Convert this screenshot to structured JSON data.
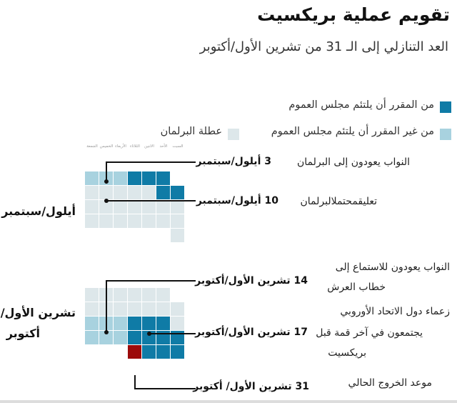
{
  "title": "تقويم عملية بريكسيت",
  "subtitle": "العد التنازلي إلى الـ 31 من تشرين الأول/أكتوبر",
  "legend": {
    "sitting": "من المقرر أن يلتئم مجلس العموم",
    "not_sitting": "من غير المقرر أن يلتئم مجلس العموم",
    "recess": "عطلة البرلمان"
  },
  "colors": {
    "sitting": "#0f7ba6",
    "not_sitting": "#a8d2df",
    "recess": "#dde7ea",
    "deadline": "#9c0b0b"
  },
  "weekdays": [
    "السبت",
    "الأحد",
    "الاثنين",
    "الثلاثاء",
    "الأربعاء",
    "الخميس",
    "الجمعة"
  ],
  "months": {
    "september": "أيلول/سبتمبر",
    "october_line1": "تشرين الأول/",
    "october_line2": "أكتوبر"
  },
  "annotations": {
    "sep3_date": "3 أيلول/سبتمبر",
    "sep3_event": "النواب يعودون إلى البرلمان",
    "sep10_date": "10 أيلول/سبتمبر",
    "sep10_event": "تعليقمحتملالبرلمان",
    "oct14_date": "14 تشرين الأول/أكتوبر",
    "oct14_event_line1": "النواب يعودون للاستماع إلى",
    "oct14_event_line2": "خطاب العرش",
    "oct17_date": "17 تشرين الأول/أكتوبر",
    "oct17_event_line1": "زعماء دول الاتحاد الأوروبي",
    "oct17_event_line2": "يجتمعون في آخر قمة قبل",
    "oct17_event_line3": "بريكسيت",
    "oct31_date": "31 تشرين الأول/ أكتوبر",
    "oct31_event": "موعد الخروج الحالي"
  },
  "calendar": {
    "september_rows": [
      [
        "empty",
        "sitting",
        "sitting",
        "sitting",
        "not_sitting",
        "not_sitting",
        "not_sitting"
      ],
      [
        "sitting",
        "sitting",
        "recess",
        "recess",
        "recess",
        "recess",
        "recess"
      ],
      [
        "recess",
        "recess",
        "recess",
        "recess",
        "recess",
        "recess",
        "recess"
      ],
      [
        "recess",
        "recess",
        "recess",
        "recess",
        "recess",
        "recess",
        "recess"
      ],
      [
        "recess",
        "empty",
        "empty",
        "empty",
        "empty",
        "empty",
        "empty"
      ]
    ],
    "october_rows": [
      [
        "empty",
        "recess",
        "recess",
        "recess",
        "recess",
        "recess",
        "recess"
      ],
      [
        "recess",
        "recess",
        "recess",
        "recess",
        "recess",
        "recess",
        "recess"
      ],
      [
        "recess",
        "sitting",
        "sitting",
        "sitting",
        "not_sitting",
        "not_sitting",
        "not_sitting"
      ],
      [
        "sitting",
        "sitting",
        "sitting",
        "sitting",
        "not_sitting",
        "not_sitting",
        "not_sitting"
      ],
      [
        "sitting",
        "sitting",
        "sitting",
        "deadline",
        "empty",
        "empty",
        "empty"
      ]
    ]
  }
}
